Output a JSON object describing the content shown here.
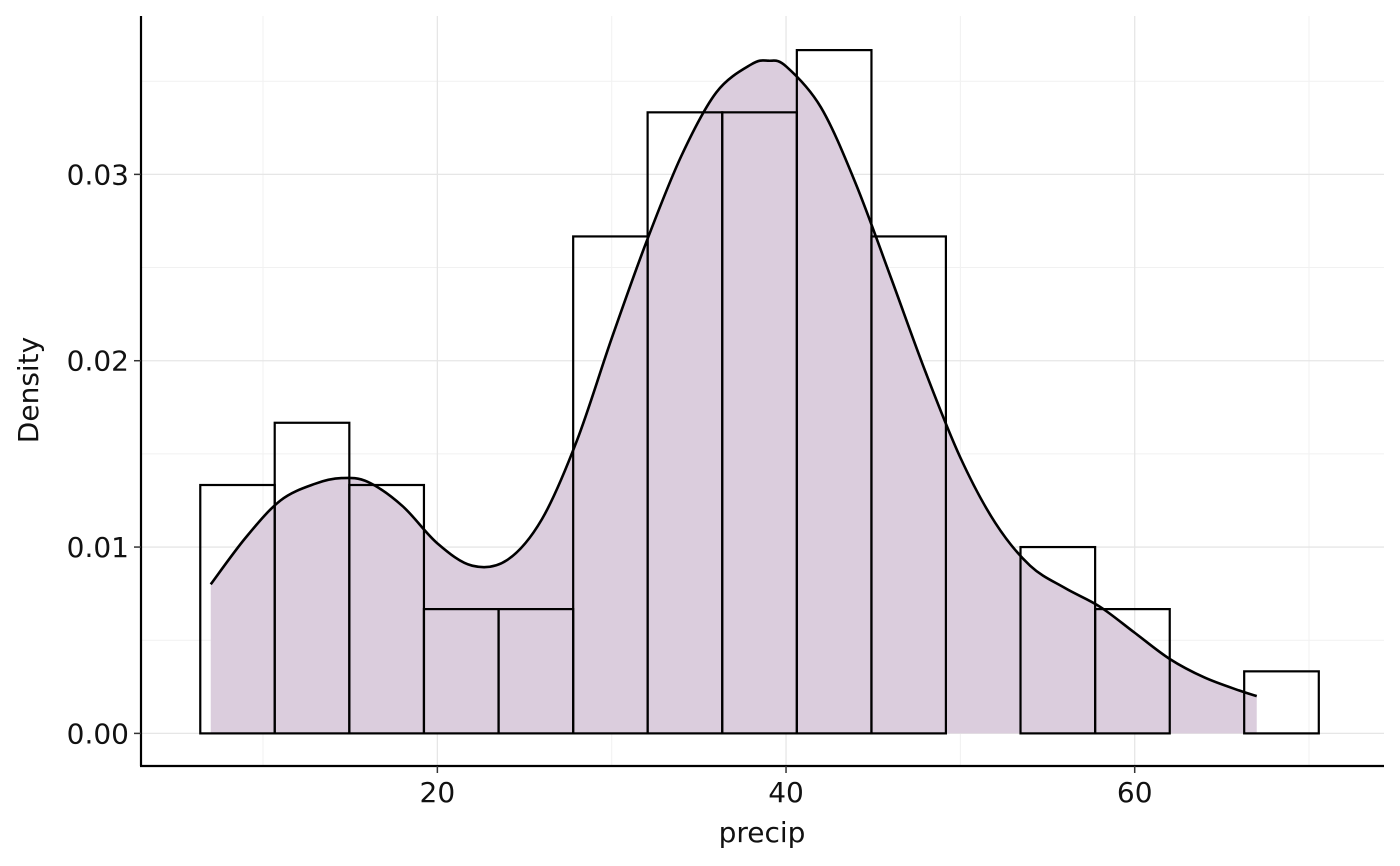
{
  "chart_data": {
    "type": "histogram",
    "xlabel": "precip",
    "ylabel": "Density",
    "xlim": [
      3.0,
      74.3
    ],
    "ylim": [
      -0.00175,
      0.0385
    ],
    "x_ticks": [
      20,
      40,
      60
    ],
    "y_ticks": [
      0.0,
      0.01,
      0.02,
      0.03
    ],
    "x_tick_labels": [
      "20",
      "40",
      "60"
    ],
    "y_tick_labels": [
      "0.00",
      "0.01",
      "0.02",
      "0.03"
    ],
    "grid": true,
    "histogram": {
      "bin_edges": [
        6.4,
        10.67,
        14.95,
        19.23,
        23.51,
        27.79,
        32.06,
        36.34,
        40.62,
        44.9,
        49.17,
        53.45,
        57.73,
        62.01,
        66.28,
        70.56
      ],
      "density": [
        0.01333,
        0.01667,
        0.01333,
        0.00667,
        0.00667,
        0.02667,
        0.03333,
        0.03333,
        0.03667,
        0.02667,
        0.0,
        0.01,
        0.00667,
        0.0,
        0.00333
      ]
    },
    "density_curve": {
      "fill_color": "#dbcddd",
      "line_color": "#000000",
      "x": [
        7.0,
        9.0,
        11.0,
        13.0,
        14.5,
        16.0,
        18.0,
        20.0,
        22.0,
        24.0,
        26.0,
        28.0,
        30.0,
        32.0,
        34.0,
        36.0,
        38.0,
        39.0,
        40.0,
        42.0,
        44.0,
        46.0,
        48.0,
        50.0,
        52.0,
        54.0,
        56.0,
        58.0,
        60.0,
        62.0,
        64.0,
        66.0,
        67.0
      ],
      "y": [
        0.008,
        0.0105,
        0.0125,
        0.0134,
        0.0137,
        0.0135,
        0.0122,
        0.0102,
        0.009,
        0.0093,
        0.0115,
        0.0157,
        0.0212,
        0.0264,
        0.031,
        0.0344,
        0.0359,
        0.0361,
        0.0358,
        0.0336,
        0.0295,
        0.0245,
        0.0194,
        0.0148,
        0.0113,
        0.009,
        0.0078,
        0.0068,
        0.0054,
        0.004,
        0.003,
        0.0023,
        0.002
      ]
    }
  }
}
